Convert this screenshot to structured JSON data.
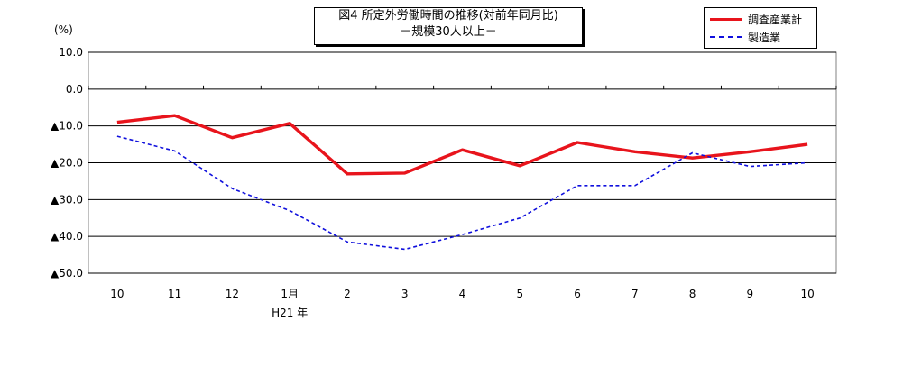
{
  "chart_data": {
    "type": "line",
    "title": "図4 所定外労働時間の推移(対前年同月比)",
    "subtitle": "－規模30人以上－",
    "unit_label": "(%)",
    "categories": [
      "10",
      "11",
      "12",
      "1月",
      "2",
      "3",
      "4",
      "5",
      "6",
      "7",
      "8",
      "9",
      "10"
    ],
    "year_label": {
      "category_index": 3,
      "text": "H21 年"
    },
    "ylim": [
      -50,
      10
    ],
    "y_ticks": [
      {
        "value": 10,
        "label": "10.0"
      },
      {
        "value": 0,
        "label": "0.0"
      },
      {
        "value": -10,
        "label": "▲10.0"
      },
      {
        "value": -20,
        "label": "▲20.0"
      },
      {
        "value": -30,
        "label": "▲30.0"
      },
      {
        "value": -40,
        "label": "▲40.0"
      },
      {
        "value": -50,
        "label": "▲50.0"
      }
    ],
    "grid": true,
    "legend_position": "top-right",
    "series": [
      {
        "name": "調査産業計",
        "color": "#e8141c",
        "style": "solid",
        "values": [
          -9.0,
          -7.2,
          -13.2,
          -9.3,
          -23.0,
          -22.8,
          -16.5,
          -20.8,
          -14.5,
          -17.0,
          -18.7,
          -17.0,
          -15.0
        ]
      },
      {
        "name": "製造業",
        "color": "#1010dd",
        "style": "dashed",
        "values": [
          -12.8,
          -16.8,
          -27.0,
          -33.0,
          -41.5,
          -43.5,
          -39.5,
          -35.0,
          -26.2,
          -26.2,
          -17.3,
          -21.0,
          -20.0
        ]
      }
    ]
  }
}
